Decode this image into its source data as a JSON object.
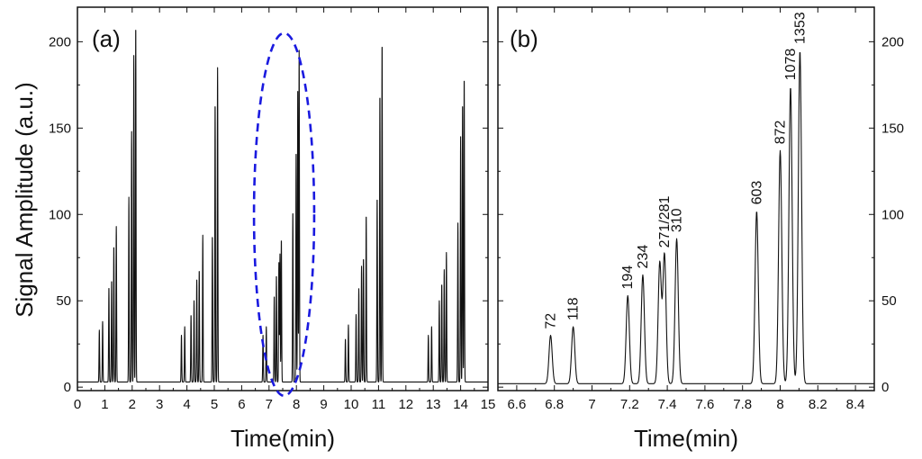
{
  "figure": {
    "ylabel": "Signal  Amplitude (a.u.)"
  },
  "chart_data": [
    {
      "type": "line",
      "panel_label": "(a)",
      "xlabel": "Time(min)",
      "ylabel": "Signal  Amplitude (a.u.)",
      "xlim": [
        0,
        15
      ],
      "ylim": [
        -2,
        220
      ],
      "x_ticks": [
        0,
        1,
        2,
        3,
        4,
        5,
        6,
        7,
        8,
        9,
        10,
        11,
        12,
        13,
        14,
        15
      ],
      "x_tick_labels": [
        "0",
        "1",
        "2",
        "3",
        "4",
        "5",
        "6",
        "7",
        "8",
        "9",
        "10",
        "11",
        "12",
        "13",
        "14",
        "15"
      ],
      "y_ticks": [
        0,
        50,
        100,
        150,
        200
      ],
      "y_tick_labels": [
        "0",
        "50",
        "100",
        "150",
        "200"
      ],
      "y_axis_side": "left",
      "baseline": 3,
      "line_color": "#111111",
      "peaks": [
        {
          "x": 0.8,
          "y": 33
        },
        {
          "x": 0.92,
          "y": 38
        },
        {
          "x": 1.15,
          "y": 58
        },
        {
          "x": 1.25,
          "y": 62
        },
        {
          "x": 1.33,
          "y": 82
        },
        {
          "x": 1.42,
          "y": 93
        },
        {
          "x": 1.88,
          "y": 110
        },
        {
          "x": 1.98,
          "y": 148
        },
        {
          "x": 2.06,
          "y": 192
        },
        {
          "x": 2.13,
          "y": 210
        },
        {
          "x": 3.8,
          "y": 30
        },
        {
          "x": 3.92,
          "y": 35
        },
        {
          "x": 4.15,
          "y": 42
        },
        {
          "x": 4.26,
          "y": 50
        },
        {
          "x": 4.36,
          "y": 62
        },
        {
          "x": 4.45,
          "y": 68
        },
        {
          "x": 4.58,
          "y": 88
        },
        {
          "x": 4.93,
          "y": 88
        },
        {
          "x": 5.03,
          "y": 165
        },
        {
          "x": 5.12,
          "y": 185
        },
        {
          "x": 6.78,
          "y": 30
        },
        {
          "x": 6.9,
          "y": 35
        },
        {
          "x": 7.19,
          "y": 53
        },
        {
          "x": 7.27,
          "y": 65
        },
        {
          "x": 7.36,
          "y": 72
        },
        {
          "x": 7.4,
          "y": 77
        },
        {
          "x": 7.45,
          "y": 86
        },
        {
          "x": 7.87,
          "y": 102
        },
        {
          "x": 7.99,
          "y": 137
        },
        {
          "x": 8.05,
          "y": 174
        },
        {
          "x": 8.1,
          "y": 195
        },
        {
          "x": 9.79,
          "y": 28
        },
        {
          "x": 9.9,
          "y": 36
        },
        {
          "x": 10.18,
          "y": 42
        },
        {
          "x": 10.28,
          "y": 57
        },
        {
          "x": 10.38,
          "y": 70
        },
        {
          "x": 10.45,
          "y": 75
        },
        {
          "x": 10.55,
          "y": 100
        },
        {
          "x": 10.95,
          "y": 110
        },
        {
          "x": 11.05,
          "y": 170
        },
        {
          "x": 11.13,
          "y": 200
        },
        {
          "x": 12.82,
          "y": 30
        },
        {
          "x": 12.94,
          "y": 35
        },
        {
          "x": 13.22,
          "y": 50
        },
        {
          "x": 13.31,
          "y": 60
        },
        {
          "x": 13.4,
          "y": 68
        },
        {
          "x": 13.48,
          "y": 78
        },
        {
          "x": 13.9,
          "y": 95
        },
        {
          "x": 14.0,
          "y": 145
        },
        {
          "x": 14.07,
          "y": 165
        },
        {
          "x": 14.13,
          "y": 180
        }
      ],
      "highlight_ellipse": {
        "cx": 7.55,
        "cy": 100,
        "rx": 1.1,
        "ry": 105,
        "color": "#1a1adf",
        "style": "dashed"
      }
    },
    {
      "type": "line",
      "panel_label": "(b)",
      "xlabel": "Time(min)",
      "xlim": [
        6.5,
        8.5
      ],
      "ylim": [
        -2,
        220
      ],
      "x_ticks": [
        6.6,
        6.8,
        7.0,
        7.2,
        7.4,
        7.6,
        7.8,
        8.0,
        8.2,
        8.4
      ],
      "x_tick_labels": [
        "6.6",
        "6.8",
        "7",
        "7.2",
        "7.4",
        "7.6",
        "7.8",
        "8",
        "8.2",
        "8.4"
      ],
      "y_ticks": [
        0,
        50,
        100,
        150,
        200
      ],
      "y_tick_labels": [
        "0",
        "50",
        "100",
        "150",
        "200"
      ],
      "y_axis_side": "right",
      "baseline": 2,
      "line_color": "#111111",
      "peaks": [
        {
          "x": 6.78,
          "y": 30,
          "label": "72"
        },
        {
          "x": 6.9,
          "y": 35,
          "label": "118"
        },
        {
          "x": 7.19,
          "y": 53,
          "label": "194"
        },
        {
          "x": 7.27,
          "y": 65,
          "label": "234"
        },
        {
          "x": 7.36,
          "y": 72,
          "label": ""
        },
        {
          "x": 7.385,
          "y": 77,
          "label": "271/281"
        },
        {
          "x": 7.45,
          "y": 86,
          "label": "310"
        },
        {
          "x": 7.875,
          "y": 102,
          "label": "603"
        },
        {
          "x": 8.0,
          "y": 137,
          "label": "872"
        },
        {
          "x": 8.055,
          "y": 174,
          "label": "1078"
        },
        {
          "x": 8.105,
          "y": 195,
          "label": "1353"
        }
      ]
    }
  ]
}
